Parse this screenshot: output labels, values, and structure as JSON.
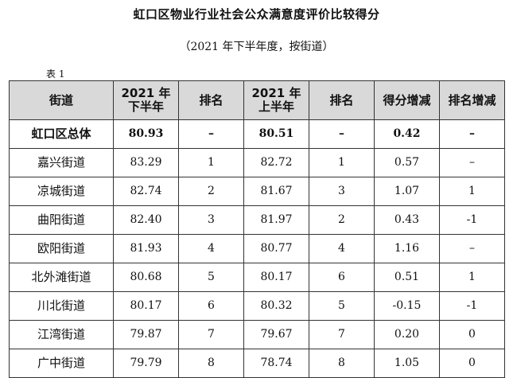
{
  "title": "虹口区物业行业社会公众满意度评价比较得分",
  "subtitle": "（2021 年下半年度，按街道）",
  "table_label": "表 1",
  "headers": [
    {
      "lines": [
        "街道"
      ]
    },
    {
      "lines": [
        "2021 年",
        "下半年"
      ]
    },
    {
      "lines": [
        "排名"
      ]
    },
    {
      "lines": [
        "2021 年",
        "上半年"
      ]
    },
    {
      "lines": [
        "排名"
      ]
    },
    {
      "lines": [
        "得分增减"
      ]
    },
    {
      "lines": [
        "排名增减"
      ]
    }
  ],
  "rows": [
    {
      "name": "虹口区总体",
      "h2": "80.93",
      "rank2": "–",
      "h1": "80.51",
      "rank1": "–",
      "score_change": "0.42",
      "rank_change": "–",
      "is_total": true
    },
    {
      "name": "嘉兴街道",
      "h2": "83.29",
      "rank2": "1",
      "h1": "82.72",
      "rank1": "1",
      "score_change": "0.57",
      "rank_change": "–"
    },
    {
      "name": "凉城街道",
      "h2": "82.74",
      "rank2": "2",
      "h1": "81.67",
      "rank1": "3",
      "score_change": "1.07",
      "rank_change": "1"
    },
    {
      "name": "曲阳街道",
      "h2": "82.40",
      "rank2": "3",
      "h1": "81.97",
      "rank1": "2",
      "score_change": "0.43",
      "rank_change": "-1"
    },
    {
      "name": "欧阳街道",
      "h2": "81.93",
      "rank2": "4",
      "h1": "80.77",
      "rank1": "4",
      "score_change": "1.16",
      "rank_change": "–"
    },
    {
      "name": "北外滩街道",
      "h2": "80.68",
      "rank2": "5",
      "h1": "80.17",
      "rank1": "6",
      "score_change": "0.51",
      "rank_change": "1"
    },
    {
      "name": "川北街道",
      "h2": "80.17",
      "rank2": "6",
      "h1": "80.32",
      "rank1": "5",
      "score_change": "-0.15",
      "rank_change": "-1"
    },
    {
      "name": "江湾街道",
      "h2": "79.87",
      "rank2": "7",
      "h1": "79.67",
      "rank1": "7",
      "score_change": "0.20",
      "rank_change": "0"
    },
    {
      "name": "广中街道",
      "h2": "79.79",
      "rank2": "8",
      "h1": "78.74",
      "rank1": "8",
      "score_change": "1.05",
      "rank_change": "0"
    }
  ],
  "colors": {
    "header_bg": "#d9d9d9",
    "border": "#333333",
    "text": "#111111"
  }
}
